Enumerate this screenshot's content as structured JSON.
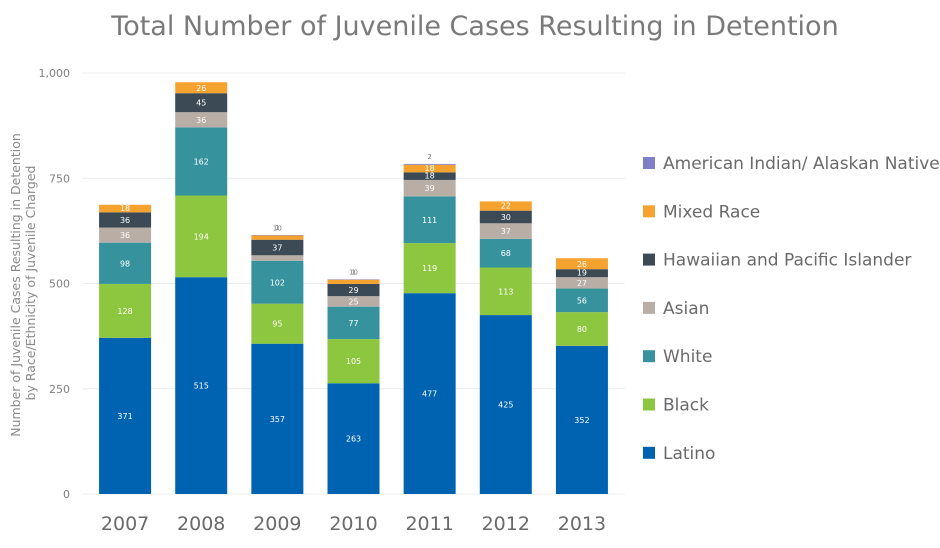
{
  "chart_data": {
    "type": "bar",
    "stacked": true,
    "title": "Total Number of Juvenile Cases Resulting in Detention",
    "ylabel_lines": [
      "Number of Juvenile Cases Resulting in Detention",
      "by Race/Ethnicity of Juvenile Charged"
    ],
    "xlabel": "",
    "ylim": [
      0,
      1000
    ],
    "yticks": [
      0,
      250,
      500,
      750,
      1000
    ],
    "ytick_labels": [
      "0",
      "250",
      "500",
      "750",
      "1,000"
    ],
    "grid": true,
    "legend_position": "right",
    "categories": [
      "2007",
      "2008",
      "2009",
      "2010",
      "2011",
      "2012",
      "2013"
    ],
    "series": [
      {
        "name": "Latino",
        "color": "#0063b1",
        "values": [
          371,
          515,
          357,
          263,
          477,
          425,
          352
        ]
      },
      {
        "name": "Black",
        "color": "#8dc63f",
        "values": [
          128,
          194,
          95,
          105,
          119,
          113,
          80
        ]
      },
      {
        "name": "White",
        "color": "#36939e",
        "values": [
          98,
          162,
          102,
          77,
          111,
          68,
          56
        ]
      },
      {
        "name": "Asian",
        "color": "#b8aea6",
        "values": [
          36,
          36,
          13,
          25,
          39,
          37,
          27
        ]
      },
      {
        "name": "Hawaiian and Pacific Islander",
        "color": "#3b4a55",
        "values": [
          36,
          45,
          37,
          29,
          18,
          30,
          19
        ]
      },
      {
        "name": "Mixed Race",
        "color": "#f6a22f",
        "values": [
          18,
          26,
          10,
          10,
          18,
          22,
          26
        ]
      },
      {
        "name": "American Indian/ Alaskan Native",
        "color": "#7f7fc8",
        "values": [
          0,
          0,
          1,
          1,
          2,
          0,
          0
        ]
      }
    ]
  }
}
